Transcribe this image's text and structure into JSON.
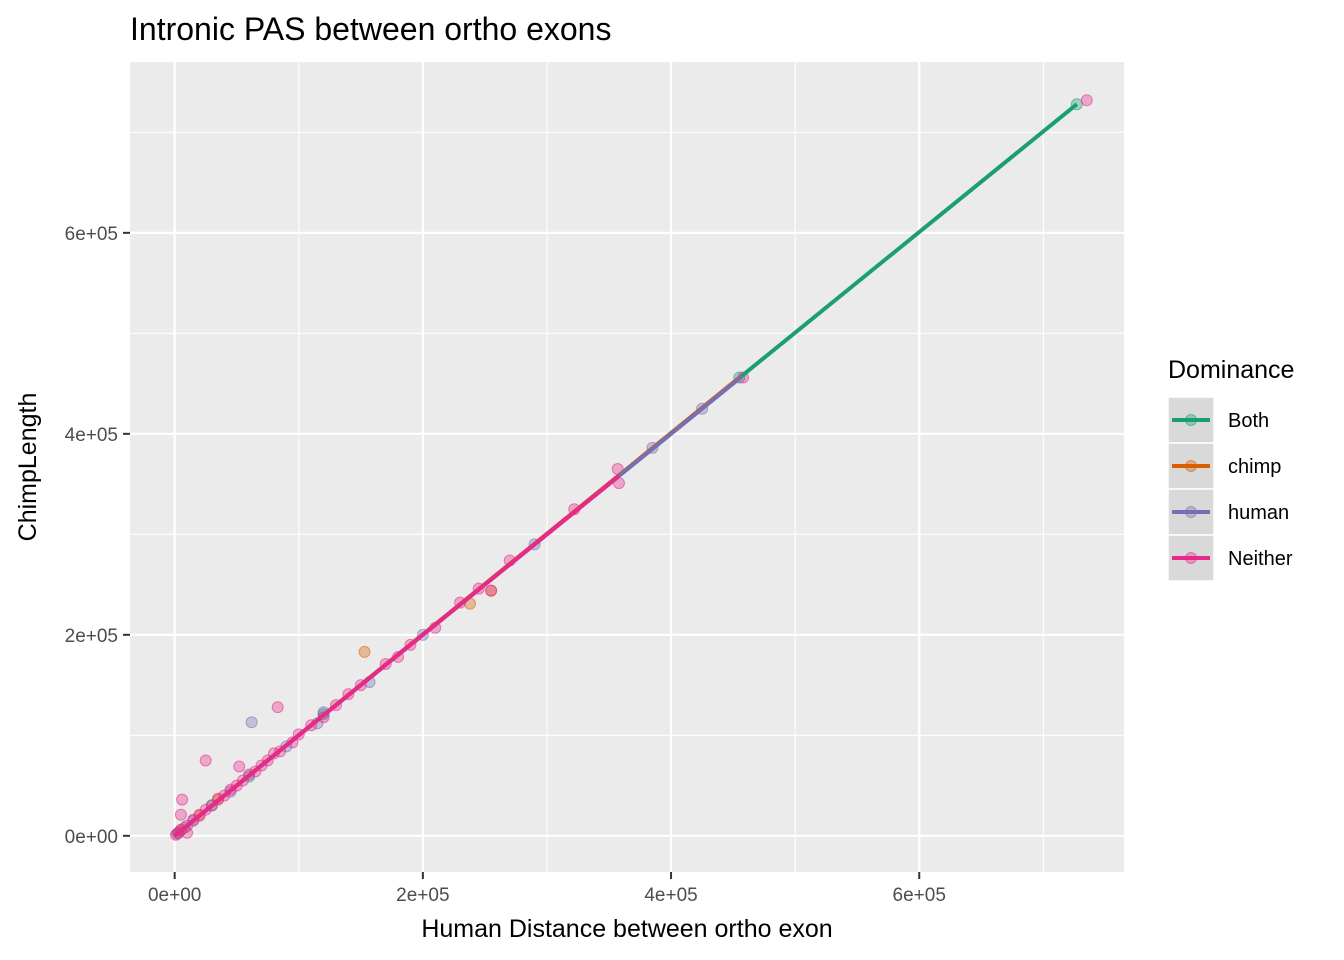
{
  "chart_data": {
    "type": "scatter",
    "title": "Intronic PAS between ortho exons",
    "xlabel": "Human Distance between ortho exon",
    "ylabel": "ChimpLength",
    "xlim": [
      -36000,
      765000
    ],
    "ylim": [
      -36000,
      770000
    ],
    "x_ticks": [
      {
        "value": 0,
        "label": "0e+00"
      },
      {
        "value": 200000,
        "label": "2e+05"
      },
      {
        "value": 400000,
        "label": "4e+05"
      },
      {
        "value": 600000,
        "label": "6e+05"
      }
    ],
    "y_ticks": [
      {
        "value": 0,
        "label": "0e+00"
      },
      {
        "value": 200000,
        "label": "2e+05"
      },
      {
        "value": 400000,
        "label": "4e+05"
      },
      {
        "value": 600000,
        "label": "6e+05"
      }
    ],
    "grid": true,
    "legend": {
      "title": "Dominance",
      "position": "right"
    },
    "series": [
      {
        "name": "Both",
        "color": "#1b9e77",
        "points": [
          [
            727000,
            728000
          ],
          [
            455000,
            456000
          ],
          [
            120000,
            121000
          ],
          [
            60000,
            59000
          ],
          [
            30000,
            30500
          ],
          [
            8000,
            8200
          ],
          [
            3000,
            3100
          ]
        ],
        "line": [
          [
            0,
            0
          ],
          [
            727000,
            728000
          ]
        ]
      },
      {
        "name": "chimp",
        "color": "#d95f02",
        "points": [
          [
            153000,
            183000
          ],
          [
            238000,
            231000
          ],
          [
            255000,
            244000
          ],
          [
            35000,
            37000
          ],
          [
            20000,
            21000
          ],
          [
            5000,
            5500
          ]
        ],
        "line": [
          [
            0,
            0
          ],
          [
            455000,
            456000
          ]
        ]
      },
      {
        "name": "human",
        "color": "#7570b3",
        "points": [
          [
            62000,
            113000
          ],
          [
            385000,
            386000
          ],
          [
            425000,
            425000
          ],
          [
            290000,
            290000
          ],
          [
            157000,
            153000
          ],
          [
            115000,
            112000
          ],
          [
            120000,
            123000
          ],
          [
            200000,
            200000
          ],
          [
            90000,
            89000
          ],
          [
            45000,
            44000
          ],
          [
            15000,
            15000
          ],
          [
            2000,
            2000
          ]
        ],
        "line": [
          [
            0,
            0
          ],
          [
            457000,
            457000
          ]
        ]
      },
      {
        "name": "Neither",
        "color": "#e7298a",
        "points": [
          [
            735000,
            732000
          ],
          [
            458000,
            456000
          ],
          [
            357000,
            365000
          ],
          [
            358000,
            351000
          ],
          [
            322000,
            325000
          ],
          [
            270000,
            274000
          ],
          [
            255000,
            244000
          ],
          [
            245000,
            246000
          ],
          [
            230000,
            232000
          ],
          [
            210000,
            207000
          ],
          [
            190000,
            190000
          ],
          [
            180000,
            178000
          ],
          [
            170000,
            171000
          ],
          [
            150000,
            150000
          ],
          [
            140000,
            141000
          ],
          [
            130000,
            130000
          ],
          [
            120000,
            118000
          ],
          [
            110000,
            110000
          ],
          [
            100000,
            101000
          ],
          [
            95000,
            93000
          ],
          [
            85000,
            84000
          ],
          [
            83000,
            128000
          ],
          [
            80000,
            82000
          ],
          [
            75000,
            75000
          ],
          [
            70000,
            70000
          ],
          [
            65000,
            64000
          ],
          [
            60000,
            61000
          ],
          [
            55000,
            55000
          ],
          [
            52000,
            69000
          ],
          [
            50000,
            50000
          ],
          [
            45000,
            46000
          ],
          [
            40000,
            40000
          ],
          [
            35000,
            36000
          ],
          [
            30000,
            30000
          ],
          [
            25000,
            75000
          ],
          [
            25000,
            26000
          ],
          [
            20000,
            20000
          ],
          [
            15000,
            16000
          ],
          [
            10000,
            10000
          ],
          [
            10000,
            3000
          ],
          [
            6000,
            36000
          ],
          [
            5000,
            21000
          ],
          [
            5000,
            6000
          ],
          [
            3000,
            3000
          ],
          [
            1000,
            1000
          ]
        ],
        "line": [
          [
            0,
            0
          ],
          [
            358000,
            358000
          ]
        ]
      }
    ]
  }
}
